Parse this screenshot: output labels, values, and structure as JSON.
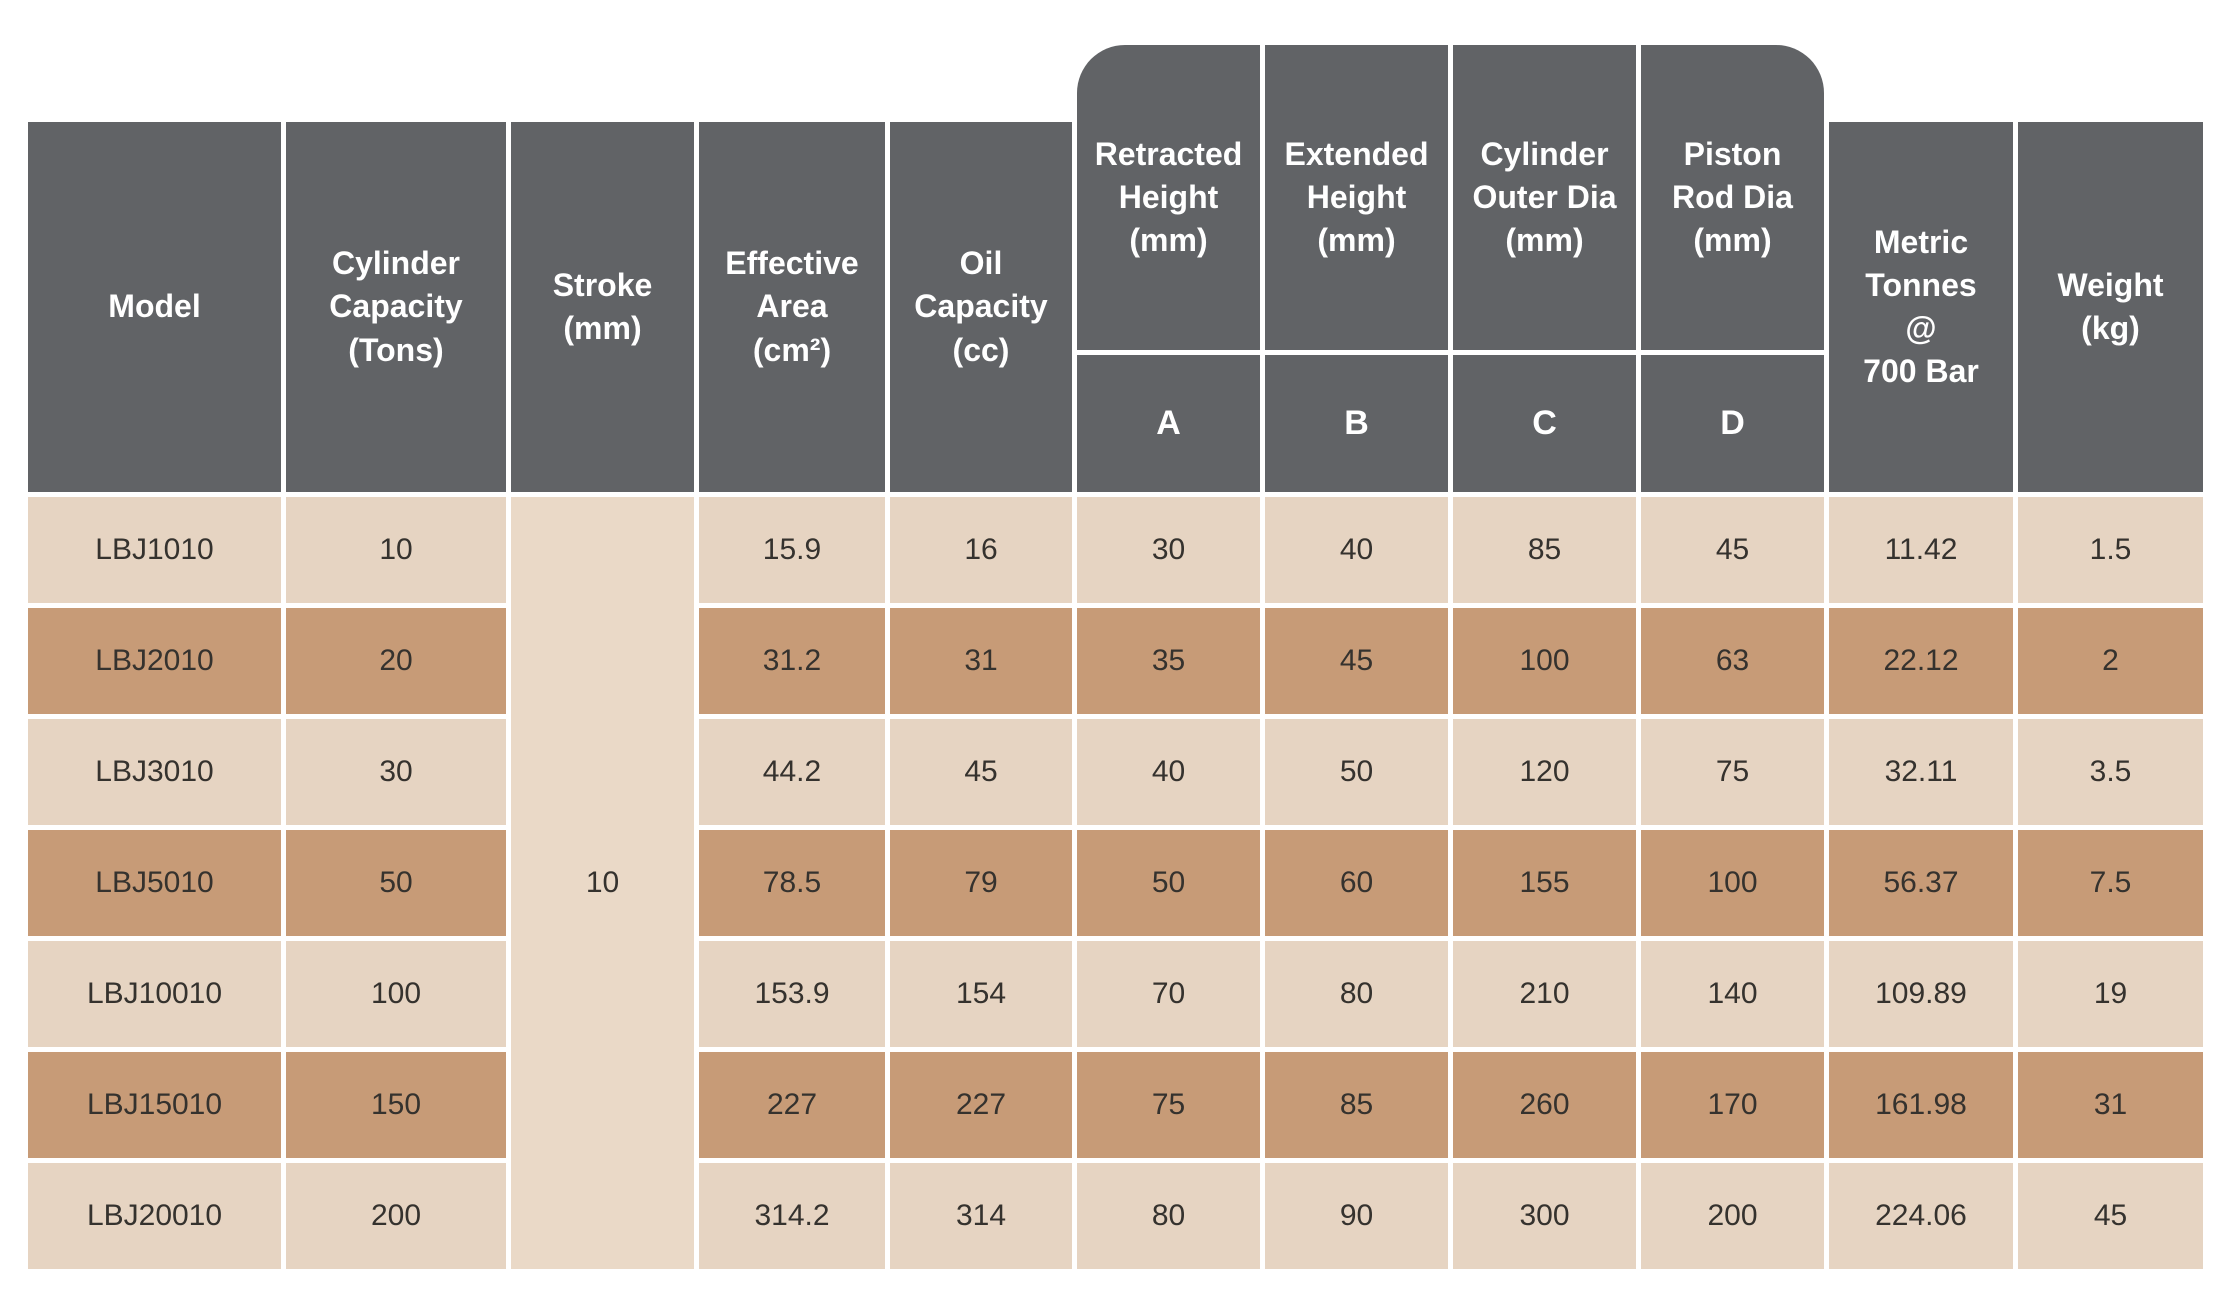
{
  "colors": {
    "header_bg": "#616366",
    "row_light": "#e6d4c2",
    "row_dark": "#c79b77",
    "stroke_bg": "#ead9c7",
    "header_text": "#ffffff",
    "data_text": "#35322e",
    "page_bg": "#ffffff"
  },
  "table": {
    "header": {
      "model": "Model",
      "cylinder_capacity": "Cylinder\nCapacity\n(Tons)",
      "stroke": "Stroke\n(mm)",
      "effective_area": "Effective\nArea\n(cm²)",
      "oil_capacity": "Oil\nCapacity\n(cc)",
      "retracted_height": "Retracted\nHeight\n(mm)",
      "extended_height": "Extended\nHeight\n(mm)",
      "cylinder_outer_dia": "Cylinder\nOuter Dia\n(mm)",
      "piston_rod_dia": "Piston\nRod Dia\n(mm)",
      "metric_tonnes": "Metric\nTonnes\n@\n700 Bar",
      "weight": "Weight\n(kg)",
      "sub_a": "A",
      "sub_b": "B",
      "sub_c": "C",
      "sub_d": "D"
    },
    "stroke_value": "10",
    "rows": [
      {
        "model": "LBJ1010",
        "capacity": "10",
        "effective_area": "15.9",
        "oil_capacity": "16",
        "a": "30",
        "b": "40",
        "c": "85",
        "d": "45",
        "metric_tonnes": "11.42",
        "weight": "1.5"
      },
      {
        "model": "LBJ2010",
        "capacity": "20",
        "effective_area": "31.2",
        "oil_capacity": "31",
        "a": "35",
        "b": "45",
        "c": "100",
        "d": "63",
        "metric_tonnes": "22.12",
        "weight": "2"
      },
      {
        "model": "LBJ3010",
        "capacity": "30",
        "effective_area": "44.2",
        "oil_capacity": "45",
        "a": "40",
        "b": "50",
        "c": "120",
        "d": "75",
        "metric_tonnes": "32.11",
        "weight": "3.5"
      },
      {
        "model": "LBJ5010",
        "capacity": "50",
        "effective_area": "78.5",
        "oil_capacity": "79",
        "a": "50",
        "b": "60",
        "c": "155",
        "d": "100",
        "metric_tonnes": "56.37",
        "weight": "7.5"
      },
      {
        "model": "LBJ10010",
        "capacity": "100",
        "effective_area": "153.9",
        "oil_capacity": "154",
        "a": "70",
        "b": "80",
        "c": "210",
        "d": "140",
        "metric_tonnes": "109.89",
        "weight": "19"
      },
      {
        "model": "LBJ15010",
        "capacity": "150",
        "effective_area": "227",
        "oil_capacity": "227",
        "a": "75",
        "b": "85",
        "c": "260",
        "d": "170",
        "metric_tonnes": "161.98",
        "weight": "31"
      },
      {
        "model": "LBJ20010",
        "capacity": "200",
        "effective_area": "314.2",
        "oil_capacity": "314",
        "a": "80",
        "b": "90",
        "c": "300",
        "d": "200",
        "metric_tonnes": "224.06",
        "weight": "45"
      }
    ]
  }
}
